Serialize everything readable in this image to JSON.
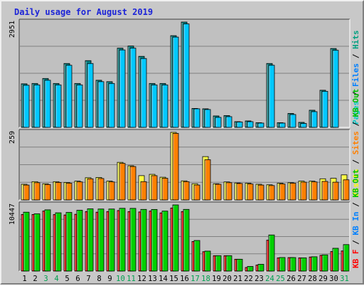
{
  "chart_data": {
    "type": "bar",
    "title": "Daily usage for August 2019",
    "categories": [
      "1",
      "2",
      "3",
      "4",
      "5",
      "6",
      "7",
      "8",
      "9",
      "10",
      "11",
      "12",
      "13",
      "14",
      "15",
      "16",
      "17",
      "18",
      "19",
      "20",
      "21",
      "22",
      "23",
      "24",
      "25",
      "26",
      "27",
      "28",
      "29",
      "30",
      "31"
    ],
    "weekend_days": [
      "3",
      "4",
      "10",
      "11",
      "17",
      "18",
      "24",
      "25",
      "31"
    ],
    "panels": [
      {
        "id": "hits",
        "ymax": 2951,
        "ymax_label": "2951",
        "side_labels": [
          {
            "text": "Pages",
            "color": "#00c8c8"
          },
          {
            "text": "Files",
            "color": "#0080ff"
          },
          {
            "text": "Hits",
            "color": "#00a080"
          }
        ],
        "series": [
          {
            "name": "Hits",
            "color": "#008080",
            "values": [
              1220,
              1230,
              1370,
              1230,
              1790,
              1230,
              1870,
              1320,
              1280,
              2220,
              2280,
              1990,
              1230,
              1230,
              2570,
              2951,
              530,
              520,
              320,
              330,
              160,
              180,
              130,
              1790,
              130,
              390,
              140,
              480,
              1040,
              2210,
              0
            ]
          },
          {
            "name": "Files",
            "color": "#00c8ff",
            "values": [
              1180,
              1190,
              1320,
              1190,
              1740,
              1190,
              1790,
              1280,
              1230,
              2170,
              2220,
              1930,
              1190,
              1190,
              2530,
              2900,
              520,
              500,
              280,
              300,
              150,
              160,
              120,
              1740,
              120,
              360,
              110,
              440,
              1010,
              2160,
              0
            ]
          }
        ]
      },
      {
        "id": "visits",
        "ymax": 259,
        "ymax_label": "259",
        "side_labels": [
          {
            "text": "Visits",
            "color": "#ffff00"
          },
          {
            "text": "Sites",
            "color": "#ff8000"
          },
          {
            "text": "KB Out",
            "color": "#00c000"
          }
        ],
        "series": [
          {
            "name": "Visits",
            "color": "#ffff40",
            "values": [
              60,
              70,
              62,
              70,
              67,
              72,
              85,
              86,
              72,
              144,
              131,
              93,
              98,
              87,
              259,
              73,
              62,
              166,
              62,
              69,
              65,
              64,
              60,
              58,
              64,
              66,
              72,
              72,
              81,
              83,
              96
            ]
          },
          {
            "name": "Sites",
            "color": "#ff8000",
            "values": [
              57,
              66,
              59,
              67,
              64,
              69,
              81,
              82,
              69,
              140,
              128,
              70,
              93,
              83,
              255,
              70,
              57,
              154,
              60,
              66,
              63,
              61,
              57,
              55,
              61,
              64,
              68,
              69,
              71,
              68,
              77
            ]
          }
        ]
      },
      {
        "id": "kbytes",
        "ymax": 10447,
        "ymax_label": "10447",
        "side_labels": [
          {
            "text": "KB F",
            "color": "#ff0000"
          },
          {
            "text": "KB In",
            "color": "#0080ff"
          },
          {
            "text": "KB Out",
            "color": "#00c000"
          }
        ],
        "series": [
          {
            "name": "KB F",
            "color": "#ff0000",
            "values": [
              8940,
              8940,
              9480,
              8930,
              8860,
              8970,
              9400,
              9300,
              9400,
              9560,
              9400,
              9340,
              9480,
              9190,
              9960,
              9400,
              4670,
              3060,
              2430,
              2430,
              1870,
              570,
              950,
              4880,
              2090,
              2130,
              2090,
              2220,
              2490,
              3090,
              3180
            ]
          },
          {
            "name": "KB Out",
            "color": "#00d000",
            "values": [
              9300,
              9040,
              9670,
              9200,
              9260,
              9600,
              9830,
              9800,
              9800,
              9910,
              9900,
              9740,
              9730,
              9470,
              10447,
              9740,
              4830,
              3150,
              2430,
              2430,
              1870,
              730,
              1070,
              5700,
              2140,
              2130,
              2090,
              2260,
              2560,
              3600,
              4180
            ]
          }
        ]
      }
    ]
  }
}
